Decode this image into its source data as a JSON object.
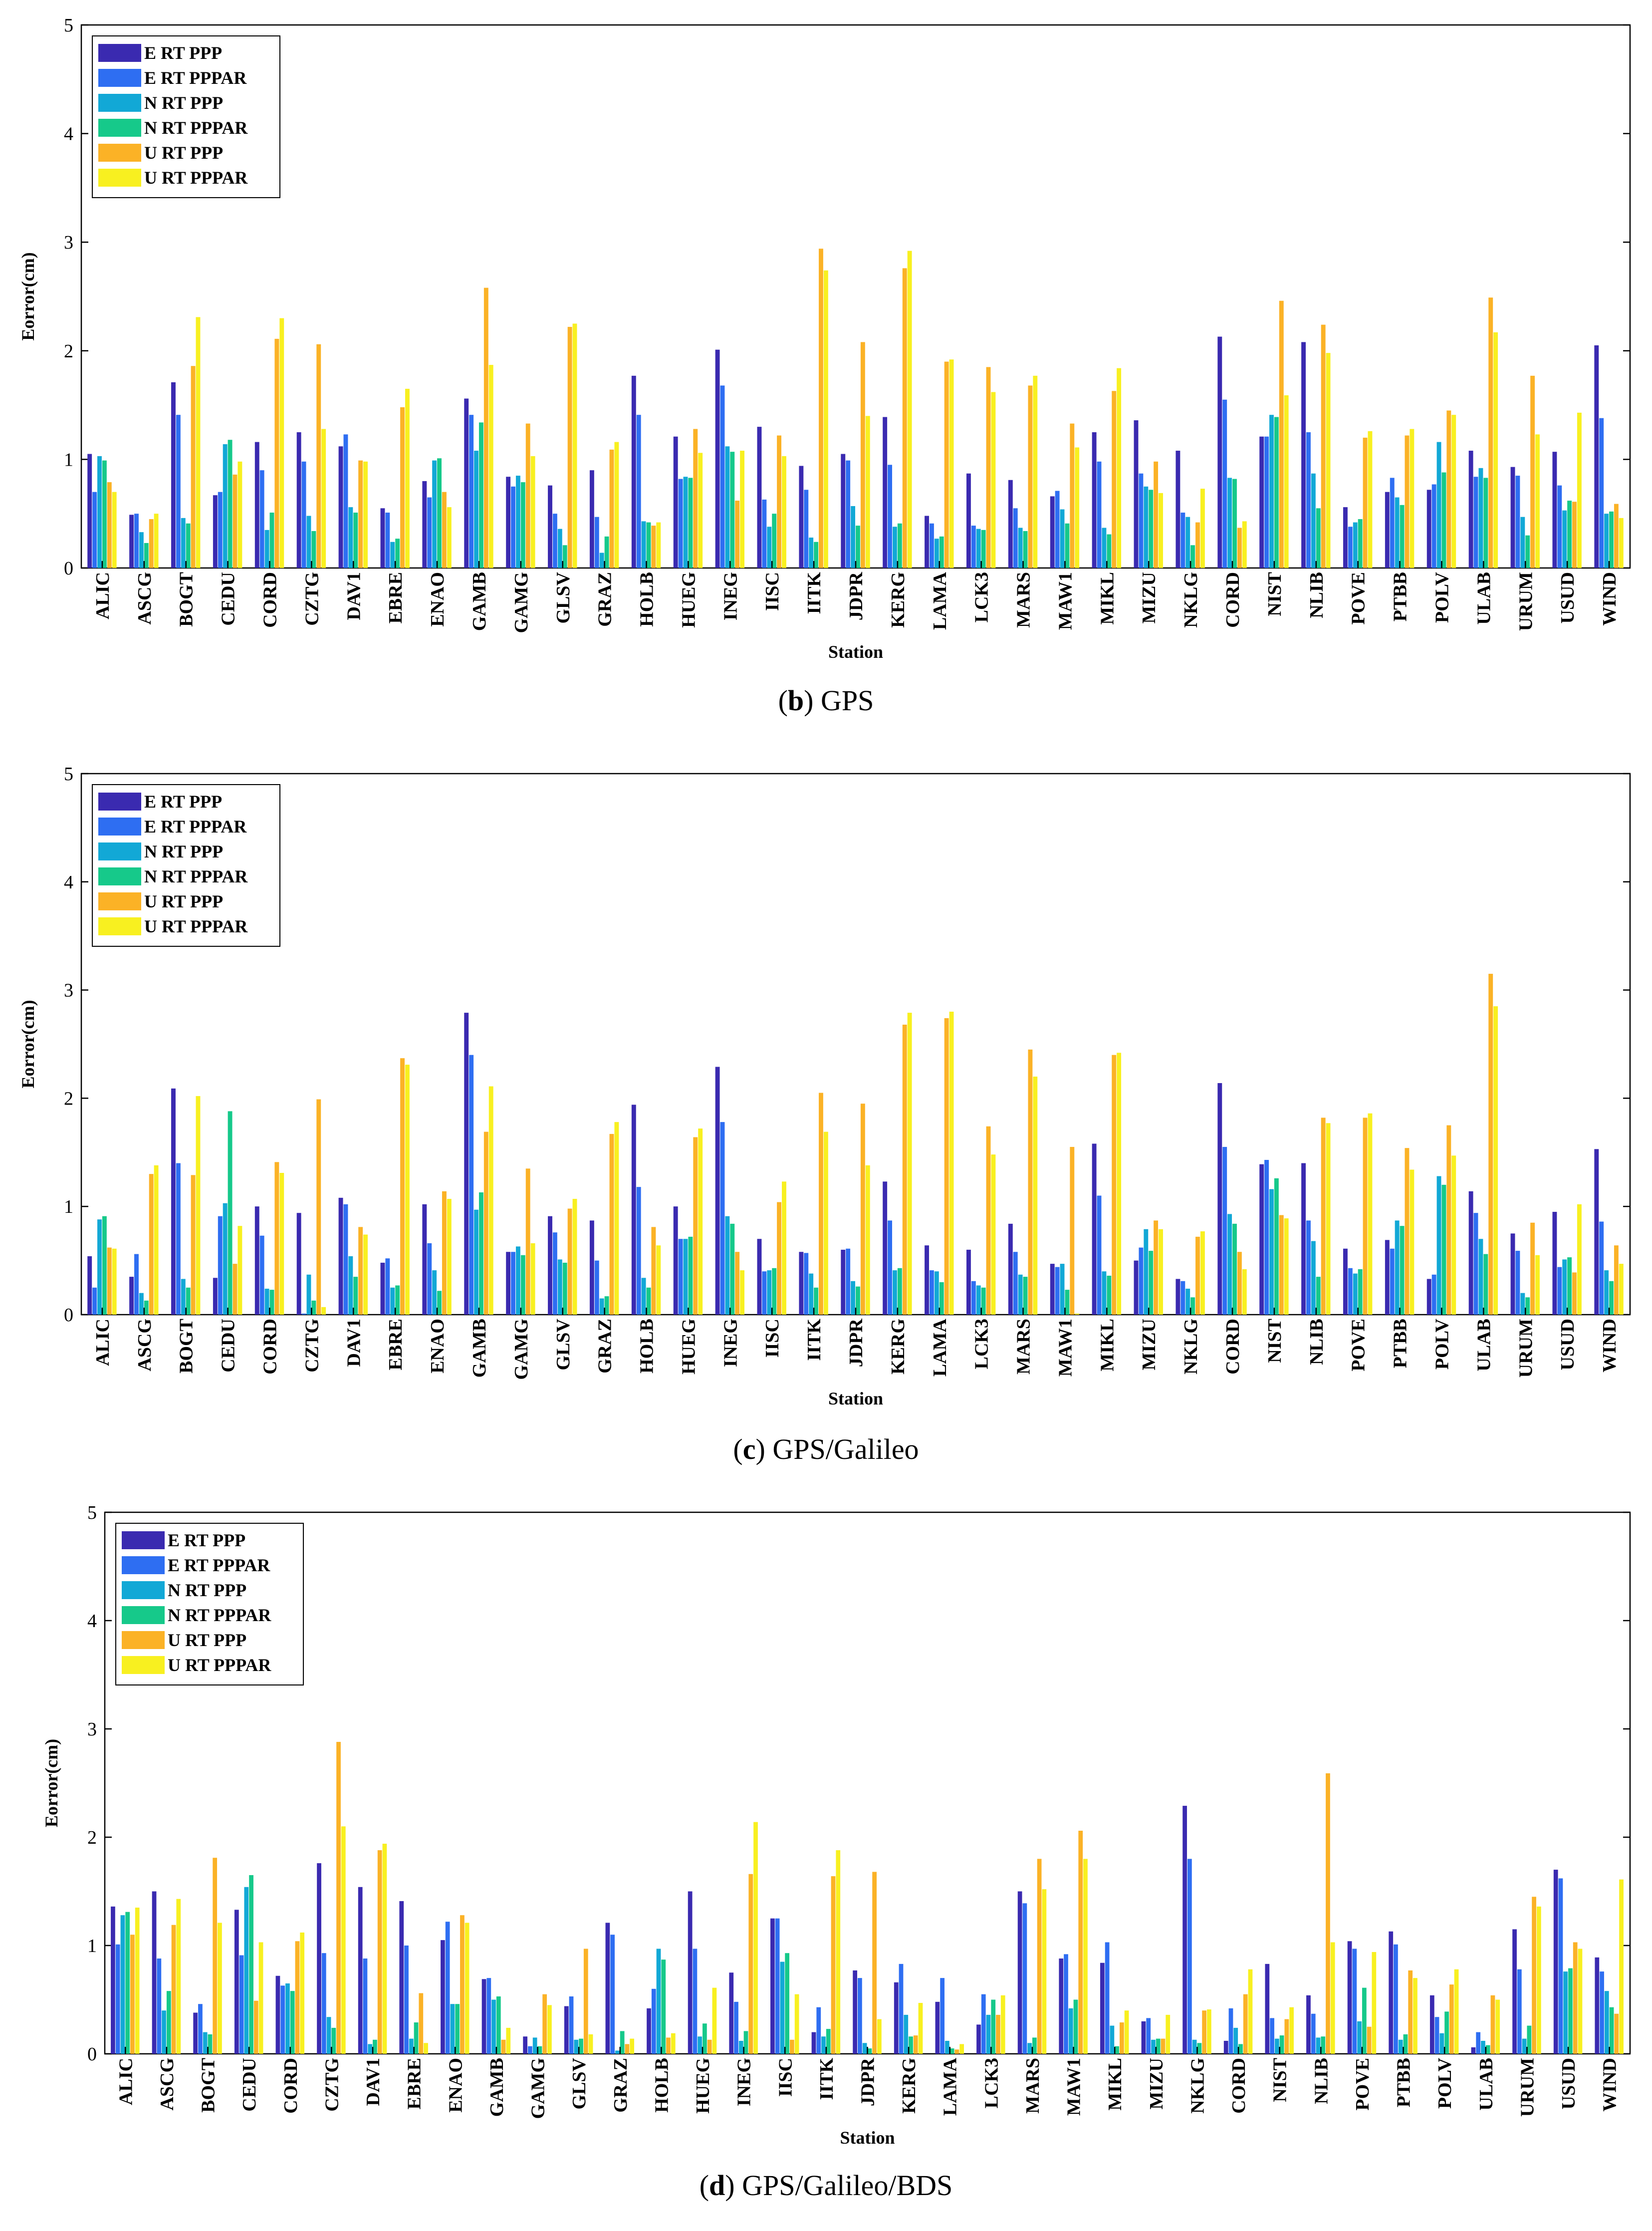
{
  "colors": {
    "E_RT_PPP": "#3a2ab0",
    "E_RT_PPPAR": "#2e6ef2",
    "N_RT_PPP": "#12a8d6",
    "N_RT_PPPAR": "#16c98a",
    "U_RT_PPP": "#fbb226",
    "U_RT_PPPAR": "#f8f020"
  },
  "chart_data": [
    {
      "type": "bar",
      "panel_letter": "b",
      "caption": "GPS",
      "title": "",
      "xlabel": "Station",
      "ylabel": "Eorror(cm)",
      "ylim": [
        0,
        5
      ],
      "yticks": [
        "0",
        "1",
        "2",
        "3",
        "4",
        "5"
      ],
      "legend_position": "top-left",
      "categories": [
        "ALIC",
        "ASCG",
        "BOGT",
        "CEDU",
        "CORD",
        "CZTG",
        "DAV1",
        "EBRE",
        "ENAO",
        "GAMB",
        "GAMG",
        "GLSV",
        "GRAZ",
        "HOLB",
        "HUEG",
        "INEG",
        "IISC",
        "IITK",
        "JDPR",
        "KERG",
        "LAMA",
        "LCK3",
        "MARS",
        "MAW1",
        "MIKL",
        "MIZU",
        "NKLG",
        "CORD",
        "NIST",
        "NLIB",
        "POVE",
        "PTBB",
        "POLV",
        "ULAB",
        "URUM",
        "USUD",
        "WIND"
      ],
      "series": [
        {
          "name": "E RT PPP",
          "color_key": "E_RT_PPP",
          "values": [
            1.05,
            0.49,
            1.71,
            0.67,
            1.16,
            1.25,
            1.12,
            0.55,
            0.8,
            1.56,
            0.84,
            0.76,
            0.9,
            1.77,
            1.21,
            2.01,
            1.3,
            0.94,
            1.05,
            1.39,
            0.48,
            0.87,
            0.81,
            0.66,
            1.25,
            1.36,
            1.08,
            2.13,
            1.21,
            2.08,
            0.56,
            0.7,
            0.72,
            1.08,
            0.93,
            1.07,
            2.05
          ]
        },
        {
          "name": "E RT PPPAR",
          "color_key": "E_RT_PPPAR",
          "values": [
            0.7,
            0.5,
            1.41,
            0.7,
            0.9,
            0.98,
            1.23,
            0.51,
            0.65,
            1.41,
            0.75,
            0.5,
            0.47,
            1.41,
            0.82,
            1.68,
            0.63,
            0.72,
            0.99,
            0.95,
            0.41,
            0.39,
            0.55,
            0.71,
            0.98,
            0.87,
            0.51,
            1.55,
            1.21,
            1.25,
            0.38,
            0.83,
            0.77,
            0.84,
            0.85,
            0.76,
            1.38
          ]
        },
        {
          "name": "N RT PPP",
          "color_key": "N_RT_PPP",
          "values": [
            1.03,
            0.33,
            0.46,
            1.14,
            0.35,
            0.48,
            0.56,
            0.24,
            0.99,
            1.08,
            0.85,
            0.36,
            0.14,
            0.43,
            0.84,
            1.12,
            0.38,
            0.28,
            0.57,
            0.38,
            0.27,
            0.36,
            0.37,
            0.54,
            0.37,
            0.75,
            0.47,
            0.83,
            1.41,
            0.87,
            0.42,
            0.65,
            1.16,
            0.92,
            0.47,
            0.53,
            0.5
          ]
        },
        {
          "name": "N RT PPPAR",
          "color_key": "N_RT_PPPAR",
          "values": [
            0.99,
            0.23,
            0.41,
            1.18,
            0.51,
            0.34,
            0.51,
            0.27,
            1.01,
            1.34,
            0.79,
            0.21,
            0.29,
            0.42,
            0.83,
            1.07,
            0.5,
            0.24,
            0.39,
            0.41,
            0.29,
            0.35,
            0.34,
            0.41,
            0.31,
            0.72,
            0.21,
            0.82,
            1.39,
            0.55,
            0.45,
            0.58,
            0.88,
            0.83,
            0.3,
            0.62,
            0.52
          ]
        },
        {
          "name": "U RT PPP",
          "color_key": "U_RT_PPP",
          "values": [
            0.79,
            0.45,
            1.86,
            0.86,
            2.11,
            2.06,
            0.99,
            1.48,
            0.7,
            2.58,
            1.33,
            2.22,
            1.09,
            0.39,
            1.28,
            0.62,
            1.22,
            2.94,
            2.08,
            2.76,
            1.9,
            1.85,
            1.68,
            1.33,
            1.63,
            0.98,
            0.42,
            0.37,
            2.46,
            2.24,
            1.2,
            1.22,
            1.45,
            2.49,
            1.77,
            0.61,
            0.59
          ]
        },
        {
          "name": "U RT PPPAR",
          "color_key": "U_RT_PPPAR",
          "values": [
            0.7,
            0.5,
            2.31,
            0.98,
            2.3,
            1.28,
            0.98,
            1.65,
            0.56,
            1.87,
            1.03,
            2.25,
            1.16,
            0.42,
            1.06,
            1.08,
            1.03,
            2.74,
            1.4,
            2.92,
            1.92,
            1.62,
            1.77,
            1.11,
            1.84,
            0.69,
            0.73,
            0.43,
            1.59,
            1.98,
            1.26,
            1.28,
            1.41,
            2.17,
            1.23,
            1.43,
            0.46
          ]
        }
      ]
    },
    {
      "type": "bar",
      "panel_letter": "c",
      "caption": "GPS/Galileo",
      "title": "",
      "xlabel": "Station",
      "ylabel": "Eorror(cm)",
      "ylim": [
        0,
        5
      ],
      "yticks": [
        "0",
        "1",
        "2",
        "3",
        "4",
        "5"
      ],
      "legend_position": "top-left",
      "categories": [
        "ALIC",
        "ASCG",
        "BOGT",
        "CEDU",
        "CORD",
        "CZTG",
        "DAV1",
        "EBRE",
        "ENAO",
        "GAMB",
        "GAMG",
        "GLSV",
        "GRAZ",
        "HOLB",
        "HUEG",
        "INEG",
        "IISC",
        "IITK",
        "JDPR",
        "KERG",
        "LAMA",
        "LCK3",
        "MARS",
        "MAW1",
        "MIKL",
        "MIZU",
        "NKLG",
        "CORD",
        "NIST",
        "NLIB",
        "POVE",
        "PTBB",
        "POLV",
        "ULAB",
        "URUM",
        "USUD",
        "WIND"
      ],
      "series": [
        {
          "name": "E RT PPP",
          "color_key": "E_RT_PPP",
          "values": [
            0.54,
            0.35,
            2.09,
            0.34,
            1.0,
            0.94,
            1.08,
            0.48,
            1.02,
            2.79,
            0.58,
            0.91,
            0.87,
            1.94,
            1.0,
            2.29,
            0.7,
            0.58,
            0.6,
            1.23,
            0.64,
            0.6,
            0.84,
            0.47,
            1.58,
            0.5,
            0.33,
            2.14,
            1.39,
            1.4,
            0.61,
            0.69,
            0.33,
            1.14,
            0.75,
            0.95,
            1.53
          ]
        },
        {
          "name": "E RT PPPAR",
          "color_key": "E_RT_PPPAR",
          "values": [
            0.25,
            0.56,
            1.4,
            0.91,
            0.73,
            0.01,
            1.02,
            0.52,
            0.66,
            2.4,
            0.58,
            0.76,
            0.5,
            1.18,
            0.7,
            1.78,
            0.4,
            0.57,
            0.61,
            0.87,
            0.41,
            0.31,
            0.58,
            0.44,
            1.1,
            0.62,
            0.31,
            1.55,
            1.43,
            0.87,
            0.43,
            0.61,
            0.37,
            0.94,
            0.59,
            0.44,
            0.86
          ]
        },
        {
          "name": "N RT PPP",
          "color_key": "N_RT_PPP",
          "values": [
            0.88,
            0.2,
            0.33,
            1.03,
            0.24,
            0.37,
            0.54,
            0.25,
            0.41,
            0.97,
            0.63,
            0.51,
            0.15,
            0.34,
            0.7,
            0.91,
            0.41,
            0.38,
            0.31,
            0.41,
            0.4,
            0.27,
            0.37,
            0.47,
            0.4,
            0.79,
            0.24,
            0.93,
            1.16,
            0.68,
            0.38,
            0.87,
            1.28,
            0.7,
            0.2,
            0.51,
            0.41
          ]
        },
        {
          "name": "N RT PPPAR",
          "color_key": "N_RT_PPPAR",
          "values": [
            0.91,
            0.13,
            0.25,
            1.88,
            0.23,
            0.13,
            0.35,
            0.27,
            0.22,
            1.13,
            0.55,
            0.48,
            0.17,
            0.25,
            0.72,
            0.84,
            0.43,
            0.25,
            0.26,
            0.43,
            0.3,
            0.25,
            0.35,
            0.23,
            0.36,
            0.59,
            0.16,
            0.84,
            1.26,
            0.35,
            0.42,
            0.82,
            1.2,
            0.56,
            0.16,
            0.53,
            0.31
          ]
        },
        {
          "name": "U RT PPP",
          "color_key": "U_RT_PPP",
          "values": [
            0.62,
            1.3,
            1.29,
            0.47,
            1.41,
            1.99,
            0.81,
            2.37,
            1.14,
            1.69,
            1.35,
            0.98,
            1.67,
            0.81,
            1.64,
            0.58,
            1.04,
            2.05,
            1.95,
            2.68,
            2.74,
            1.74,
            2.45,
            1.55,
            2.4,
            0.87,
            0.72,
            0.58,
            0.92,
            1.82,
            1.82,
            1.54,
            1.75,
            3.15,
            0.85,
            0.39,
            0.64
          ]
        },
        {
          "name": "U RT PPPAR",
          "color_key": "U_RT_PPPAR",
          "values": [
            0.61,
            1.38,
            2.02,
            0.82,
            1.31,
            0.07,
            0.74,
            2.31,
            1.07,
            2.11,
            0.66,
            1.07,
            1.78,
            0.64,
            1.72,
            0.41,
            1.23,
            1.69,
            1.38,
            2.79,
            2.8,
            1.48,
            2.2,
            0.01,
            2.42,
            0.79,
            0.77,
            0.42,
            0.89,
            1.77,
            1.86,
            1.34,
            1.47,
            2.85,
            0.55,
            1.02,
            0.47
          ]
        }
      ]
    },
    {
      "type": "bar",
      "panel_letter": "d",
      "caption": "GPS/Galileo/BDS",
      "title": "",
      "xlabel": "Station",
      "ylabel": "Eorror(cm)",
      "ylim": [
        0,
        5
      ],
      "yticks": [
        "0",
        "1",
        "2",
        "3",
        "4",
        "5"
      ],
      "legend_position": "top-left",
      "categories": [
        "ALIC",
        "ASCG",
        "BOGT",
        "CEDU",
        "CORD",
        "CZTG",
        "DAV1",
        "EBRE",
        "ENAO",
        "GAMB",
        "GAMG",
        "GLSV",
        "GRAZ",
        "HOLB",
        "HUEG",
        "INEG",
        "IISC",
        "IITK",
        "JDPR",
        "KERG",
        "LAMA",
        "LCK3",
        "MARS",
        "MAW1",
        "MIKL",
        "MIZU",
        "NKLG",
        "CORD",
        "NIST",
        "NLIB",
        "POVE",
        "PTBB",
        "POLV",
        "ULAB",
        "URUM",
        "USUD",
        "WIND"
      ],
      "series": [
        {
          "name": "E RT PPP",
          "color_key": "E_RT_PPP",
          "values": [
            1.36,
            1.5,
            0.38,
            1.33,
            0.72,
            1.76,
            1.54,
            1.41,
            1.05,
            0.69,
            0.16,
            0.44,
            1.21,
            0.42,
            1.5,
            0.75,
            1.25,
            0.2,
            0.77,
            0.66,
            0.48,
            0.27,
            1.5,
            0.88,
            0.84,
            0.3,
            2.29,
            0.12,
            0.83,
            0.54,
            1.04,
            1.13,
            0.54,
            0.06,
            1.15,
            1.7,
            0.89
          ]
        },
        {
          "name": "E RT PPPAR",
          "color_key": "E_RT_PPPAR",
          "values": [
            1.01,
            0.88,
            0.46,
            0.91,
            0.63,
            0.93,
            0.88,
            1.0,
            1.22,
            0.7,
            0.07,
            0.53,
            1.1,
            0.6,
            0.97,
            0.48,
            1.25,
            0.43,
            0.7,
            0.83,
            0.7,
            0.55,
            1.39,
            0.92,
            1.03,
            0.33,
            1.8,
            0.42,
            0.33,
            0.37,
            0.97,
            1.01,
            0.34,
            0.2,
            0.78,
            1.62,
            0.76
          ]
        },
        {
          "name": "N RT PPP",
          "color_key": "N_RT_PPP",
          "values": [
            1.28,
            0.4,
            0.2,
            1.54,
            0.65,
            0.34,
            0.09,
            0.14,
            0.46,
            0.5,
            0.15,
            0.13,
            0.03,
            0.97,
            0.16,
            0.12,
            0.85,
            0.16,
            0.1,
            0.36,
            0.12,
            0.36,
            0.1,
            0.42,
            0.26,
            0.13,
            0.13,
            0.24,
            0.14,
            0.15,
            0.3,
            0.13,
            0.19,
            0.12,
            0.14,
            0.76,
            0.58
          ]
        },
        {
          "name": "N RT PPPAR",
          "color_key": "N_RT_PPPAR",
          "values": [
            1.31,
            0.58,
            0.18,
            1.65,
            0.58,
            0.24,
            0.13,
            0.29,
            0.46,
            0.53,
            0.07,
            0.14,
            0.21,
            0.87,
            0.28,
            0.21,
            0.93,
            0.23,
            0.05,
            0.16,
            0.05,
            0.5,
            0.15,
            0.5,
            0.07,
            0.14,
            0.1,
            0.09,
            0.17,
            0.16,
            0.61,
            0.18,
            0.39,
            0.08,
            0.26,
            0.79,
            0.43
          ]
        },
        {
          "name": "U RT PPP",
          "color_key": "U_RT_PPP",
          "values": [
            1.1,
            1.19,
            1.81,
            0.49,
            1.04,
            2.88,
            1.88,
            0.56,
            1.28,
            0.13,
            0.55,
            0.97,
            0.09,
            0.15,
            0.13,
            1.66,
            0.13,
            1.64,
            1.68,
            0.17,
            0.04,
            0.36,
            1.8,
            2.06,
            0.29,
            0.14,
            0.4,
            0.55,
            0.32,
            2.59,
            0.25,
            0.77,
            0.64,
            0.54,
            1.45,
            1.03,
            0.37
          ]
        },
        {
          "name": "U RT PPPAR",
          "color_key": "U_RT_PPPAR",
          "values": [
            1.35,
            1.43,
            1.21,
            1.03,
            1.12,
            2.1,
            1.94,
            0.1,
            1.21,
            0.24,
            0.45,
            0.18,
            0.14,
            0.19,
            0.61,
            2.14,
            0.55,
            1.88,
            0.32,
            0.47,
            0.09,
            0.54,
            1.52,
            1.8,
            0.4,
            0.36,
            0.41,
            0.78,
            0.43,
            1.03,
            0.94,
            0.7,
            0.78,
            0.5,
            1.36,
            0.97,
            1.61
          ]
        }
      ]
    }
  ]
}
